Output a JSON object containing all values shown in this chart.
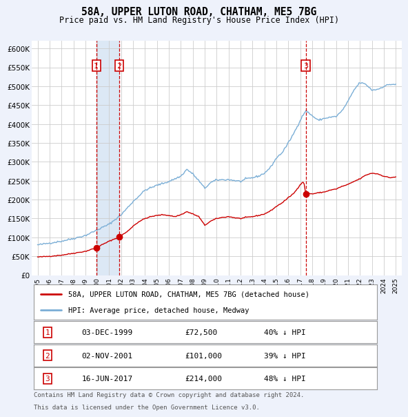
{
  "title1": "58A, UPPER LUTON ROAD, CHATHAM, ME5 7BG",
  "title2": "Price paid vs. HM Land Registry's House Price Index (HPI)",
  "legend_label_red": "58A, UPPER LUTON ROAD, CHATHAM, ME5 7BG (detached house)",
  "legend_label_blue": "HPI: Average price, detached house, Medway",
  "footer1": "Contains HM Land Registry data © Crown copyright and database right 2024.",
  "footer2": "This data is licensed under the Open Government Licence v3.0.",
  "transactions": [
    {
      "num": 1,
      "date": "03-DEC-1999",
      "price": 72500,
      "pct": "40%",
      "dir": "↓",
      "year": 1999.92
    },
    {
      "num": 2,
      "date": "02-NOV-2001",
      "price": 101000,
      "pct": "39%",
      "dir": "↓",
      "year": 2001.83
    },
    {
      "num": 3,
      "date": "16-JUN-2017",
      "price": 214000,
      "pct": "48%",
      "dir": "↓",
      "year": 2017.46
    }
  ],
  "ylim": [
    0,
    620000
  ],
  "xlim_left": 1994.5,
  "xlim_right": 2025.5,
  "bg_color": "#eef2fb",
  "plot_bg": "#ffffff",
  "grid_color": "#cccccc",
  "red_color": "#cc0000",
  "blue_color": "#7aaed6",
  "shade_color": "#dce8f5",
  "dashed_color": "#cc0000",
  "box_color": "#cc0000",
  "yticks": [
    0,
    50000,
    100000,
    150000,
    200000,
    250000,
    300000,
    350000,
    400000,
    450000,
    500000,
    550000,
    600000
  ],
  "ylabels": [
    "£0",
    "£50K",
    "£100K",
    "£150K",
    "£200K",
    "£250K",
    "£300K",
    "£350K",
    "£400K",
    "£450K",
    "£500K",
    "£550K",
    "£600K"
  ]
}
